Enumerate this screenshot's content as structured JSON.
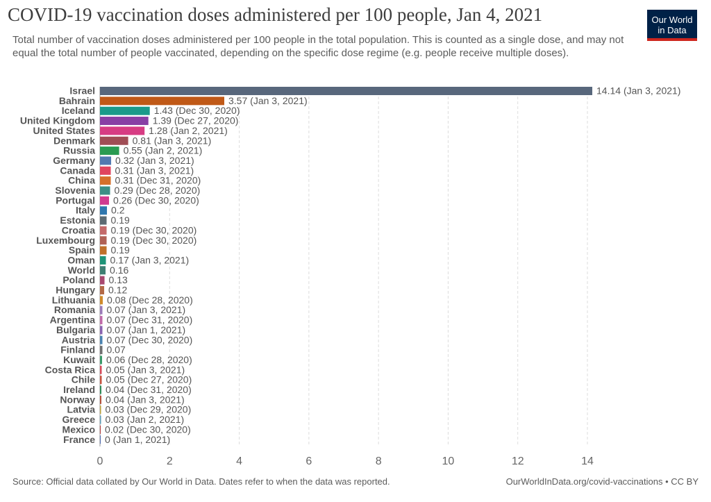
{
  "title": "COVID-19 vaccination doses administered per 100 people, Jan 4, 2021",
  "subtitle": "Total number of vaccination doses administered per 100 people in the total population. This is counted as a single dose, and may not equal the total number of people vaccinated, depending on the specific dose regime (e.g. people receive multiple doses).",
  "logo": {
    "line1": "Our World",
    "line2": "in Data",
    "background": "#002147",
    "accent": "#ce261e"
  },
  "footer": {
    "source": "Source: Official data collated by Our World in Data. Dates refer to when the data was reported.",
    "url": "OurWorldInData.org/covid-vaccinations • CC BY"
  },
  "chart_data": {
    "type": "bar",
    "orientation": "horizontal",
    "xlim": [
      0,
      14
    ],
    "xticks": [
      0,
      2,
      4,
      6,
      8,
      10,
      12,
      14
    ],
    "grid": "vertical dashed",
    "bars": [
      {
        "country": "Israel",
        "value": 14.14,
        "date": "Jan 3, 2021",
        "color": "#58677c"
      },
      {
        "country": "Bahrain",
        "value": 3.57,
        "date": "Jan 3, 2021",
        "color": "#c05917"
      },
      {
        "country": "Iceland",
        "value": 1.43,
        "date": "Dec 30, 2020",
        "color": "#1a9a8a"
      },
      {
        "country": "United Kingdom",
        "value": 1.39,
        "date": "Dec 27, 2020",
        "color": "#883fa5"
      },
      {
        "country": "United States",
        "value": 1.28,
        "date": "Jan 2, 2021",
        "color": "#d73c83"
      },
      {
        "country": "Denmark",
        "value": 0.81,
        "date": "Jan 3, 2021",
        "color": "#a04d55"
      },
      {
        "country": "Russia",
        "value": 0.55,
        "date": "Jan 2, 2021",
        "color": "#2a9b52"
      },
      {
        "country": "Germany",
        "value": 0.32,
        "date": "Jan 3, 2021",
        "color": "#5279b0"
      },
      {
        "country": "Canada",
        "value": 0.31,
        "date": "Jan 3, 2021",
        "color": "#e0455f"
      },
      {
        "country": "China",
        "value": 0.31,
        "date": "Dec 31, 2020",
        "color": "#d5702c"
      },
      {
        "country": "Slovenia",
        "value": 0.29,
        "date": "Dec 28, 2020",
        "color": "#3b8f86"
      },
      {
        "country": "Portugal",
        "value": 0.26,
        "date": "Dec 30, 2020",
        "color": "#d23b8f"
      },
      {
        "country": "Italy",
        "value": 0.2,
        "date": "",
        "color": "#2f77ae"
      },
      {
        "country": "Estonia",
        "value": 0.19,
        "date": "",
        "color": "#5c6b73"
      },
      {
        "country": "Croatia",
        "value": 0.19,
        "date": "Dec 30, 2020",
        "color": "#c46a6a"
      },
      {
        "country": "Luxembourg",
        "value": 0.19,
        "date": "Dec 30, 2020",
        "color": "#b06155"
      },
      {
        "country": "Spain",
        "value": 0.19,
        "date": "",
        "color": "#c0702a"
      },
      {
        "country": "Oman",
        "value": 0.17,
        "date": "Jan 3, 2021",
        "color": "#1e9478"
      },
      {
        "country": "World",
        "value": 0.16,
        "date": "",
        "color": "#3f7f73"
      },
      {
        "country": "Poland",
        "value": 0.13,
        "date": "",
        "color": "#a8486f"
      },
      {
        "country": "Hungary",
        "value": 0.12,
        "date": "",
        "color": "#b36a47"
      },
      {
        "country": "Lithuania",
        "value": 0.08,
        "date": "Dec 28, 2020",
        "color": "#d08a2a"
      },
      {
        "country": "Romania",
        "value": 0.07,
        "date": "Jan 3, 2021",
        "color": "#9a7ab8"
      },
      {
        "country": "Argentina",
        "value": 0.07,
        "date": "Dec 31, 2020",
        "color": "#c06aa8"
      },
      {
        "country": "Bulgaria",
        "value": 0.07,
        "date": "Jan 1, 2021",
        "color": "#8a63b0"
      },
      {
        "country": "Austria",
        "value": 0.07,
        "date": "Dec 30, 2020",
        "color": "#4a83b0"
      },
      {
        "country": "Finland",
        "value": 0.07,
        "date": "",
        "color": "#6f6f6f"
      },
      {
        "country": "Kuwait",
        "value": 0.06,
        "date": "Dec 28, 2020",
        "color": "#3a9a6a"
      },
      {
        "country": "Costa Rica",
        "value": 0.05,
        "date": "Jan 3, 2021",
        "color": "#d64a5a"
      },
      {
        "country": "Chile",
        "value": 0.05,
        "date": "Dec 27, 2020",
        "color": "#c6533e"
      },
      {
        "country": "Ireland",
        "value": 0.04,
        "date": "Dec 31, 2020",
        "color": "#2e8b57"
      },
      {
        "country": "Norway",
        "value": 0.04,
        "date": "Jan 3, 2021",
        "color": "#b5503a"
      },
      {
        "country": "Latvia",
        "value": 0.03,
        "date": "Dec 29, 2020",
        "color": "#b8a038"
      },
      {
        "country": "Greece",
        "value": 0.03,
        "date": "Jan 2, 2021",
        "color": "#5a9bb5"
      },
      {
        "country": "Mexico",
        "value": 0.02,
        "date": "Dec 30, 2020",
        "color": "#b03a3a"
      },
      {
        "country": "France",
        "value": 0,
        "date": "Jan 1, 2021",
        "color": "#4a66ac"
      }
    ]
  }
}
